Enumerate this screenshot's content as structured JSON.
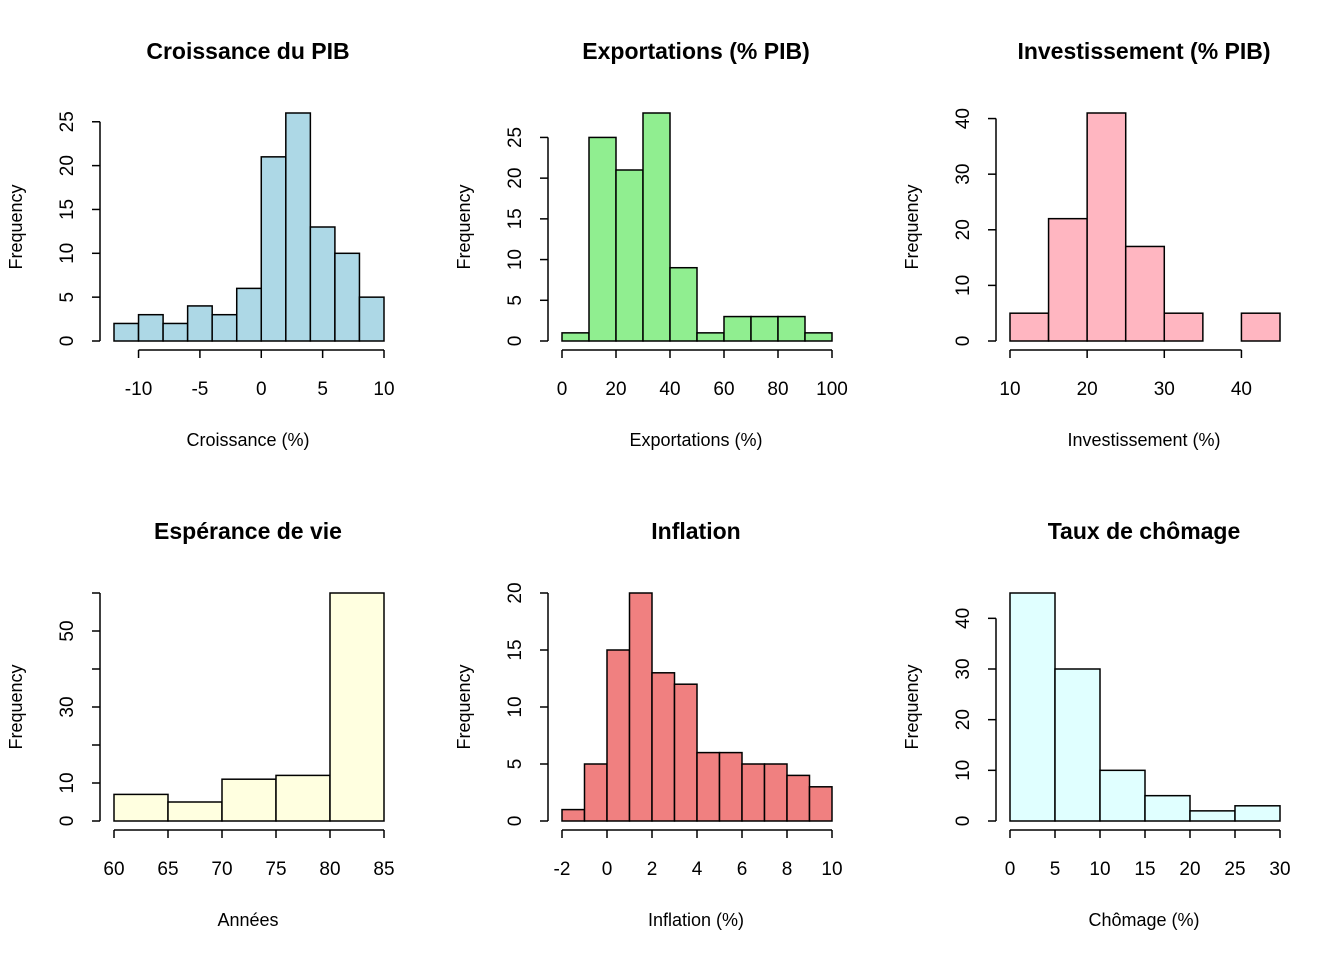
{
  "chart_data": [
    {
      "type": "histogram",
      "title": "Croissance du PIB",
      "xlabel": "Croissance (%)",
      "ylabel": "Frequency",
      "color": "#add8e6",
      "bins": [
        -12,
        -10,
        -8,
        -6,
        -4,
        -2,
        0,
        2,
        4,
        6,
        8,
        10
      ],
      "values": [
        2,
        3,
        2,
        4,
        3,
        6,
        21,
        26,
        13,
        10,
        5
      ],
      "xlim": [
        -12,
        10
      ],
      "xticks": [
        -10,
        -5,
        0,
        5,
        10
      ],
      "ylim": [
        0,
        26
      ],
      "yticks": [
        0,
        5,
        10,
        15,
        20,
        25
      ]
    },
    {
      "type": "histogram",
      "title": "Exportations (% PIB)",
      "xlabel": "Exportations (%)",
      "ylabel": "Frequency",
      "color": "#90ee90",
      "bins": [
        0,
        10,
        20,
        30,
        40,
        50,
        60,
        70,
        80,
        90,
        100
      ],
      "values": [
        1,
        25,
        21,
        28,
        9,
        1,
        3,
        3,
        3,
        1
      ],
      "xlim": [
        0,
        100
      ],
      "xticks": [
        0,
        20,
        40,
        60,
        80,
        100
      ],
      "ylim": [
        0,
        28
      ],
      "yticks": [
        0,
        5,
        10,
        15,
        20,
        25
      ]
    },
    {
      "type": "histogram",
      "title": "Investissement (% PIB)",
      "xlabel": "Investissement (%)",
      "ylabel": "Frequency",
      "color": "#ffb6c1",
      "bins": [
        10,
        15,
        20,
        25,
        30,
        35,
        40,
        45
      ],
      "values": [
        5,
        22,
        41,
        17,
        5,
        0,
        5
      ],
      "xlim": [
        10,
        45
      ],
      "xticks": [
        10,
        20,
        30,
        40
      ],
      "ylim": [
        0,
        41
      ],
      "yticks": [
        0,
        10,
        20,
        30,
        40
      ]
    },
    {
      "type": "histogram",
      "title": "Espérance de vie",
      "xlabel": "Années",
      "ylabel": "Frequency",
      "color": "#ffffe0",
      "bins": [
        60,
        65,
        70,
        75,
        80,
        85
      ],
      "values": [
        7,
        5,
        11,
        12,
        60
      ],
      "xlim": [
        60,
        85
      ],
      "xticks": [
        60,
        65,
        70,
        75,
        80,
        85
      ],
      "ylim": [
        0,
        60
      ],
      "yticks": [
        0,
        10,
        {
          "value": 20,
          "label": null
        },
        30,
        {
          "value": 40,
          "label": null
        },
        50,
        {
          "value": 60,
          "label": null
        }
      ]
    },
    {
      "type": "histogram",
      "title": "Inflation",
      "xlabel": "Inflation (%)",
      "ylabel": "Frequency",
      "color": "#f08080",
      "bins": [
        -2,
        -1,
        0,
        1,
        2,
        3,
        4,
        5,
        6,
        7,
        8,
        9,
        10
      ],
      "values": [
        1,
        5,
        15,
        20,
        13,
        12,
        6,
        6,
        5,
        5,
        4,
        3
      ],
      "xlim": [
        -2,
        10
      ],
      "xticks": [
        -2,
        0,
        2,
        4,
        6,
        8,
        10
      ],
      "ylim": [
        0,
        20
      ],
      "yticks": [
        0,
        5,
        10,
        15,
        20
      ]
    },
    {
      "type": "histogram",
      "title": "Taux de chômage",
      "xlabel": "Chômage (%)",
      "ylabel": "Frequency",
      "color": "#e0ffff",
      "bins": [
        0,
        5,
        10,
        15,
        20,
        25,
        30
      ],
      "values": [
        45,
        30,
        10,
        5,
        2,
        3
      ],
      "xlim": [
        0,
        30
      ],
      "xticks": [
        0,
        5,
        10,
        15,
        20,
        25,
        30
      ],
      "ylim": [
        0,
        45
      ],
      "yticks": [
        0,
        10,
        20,
        30,
        40
      ]
    }
  ]
}
